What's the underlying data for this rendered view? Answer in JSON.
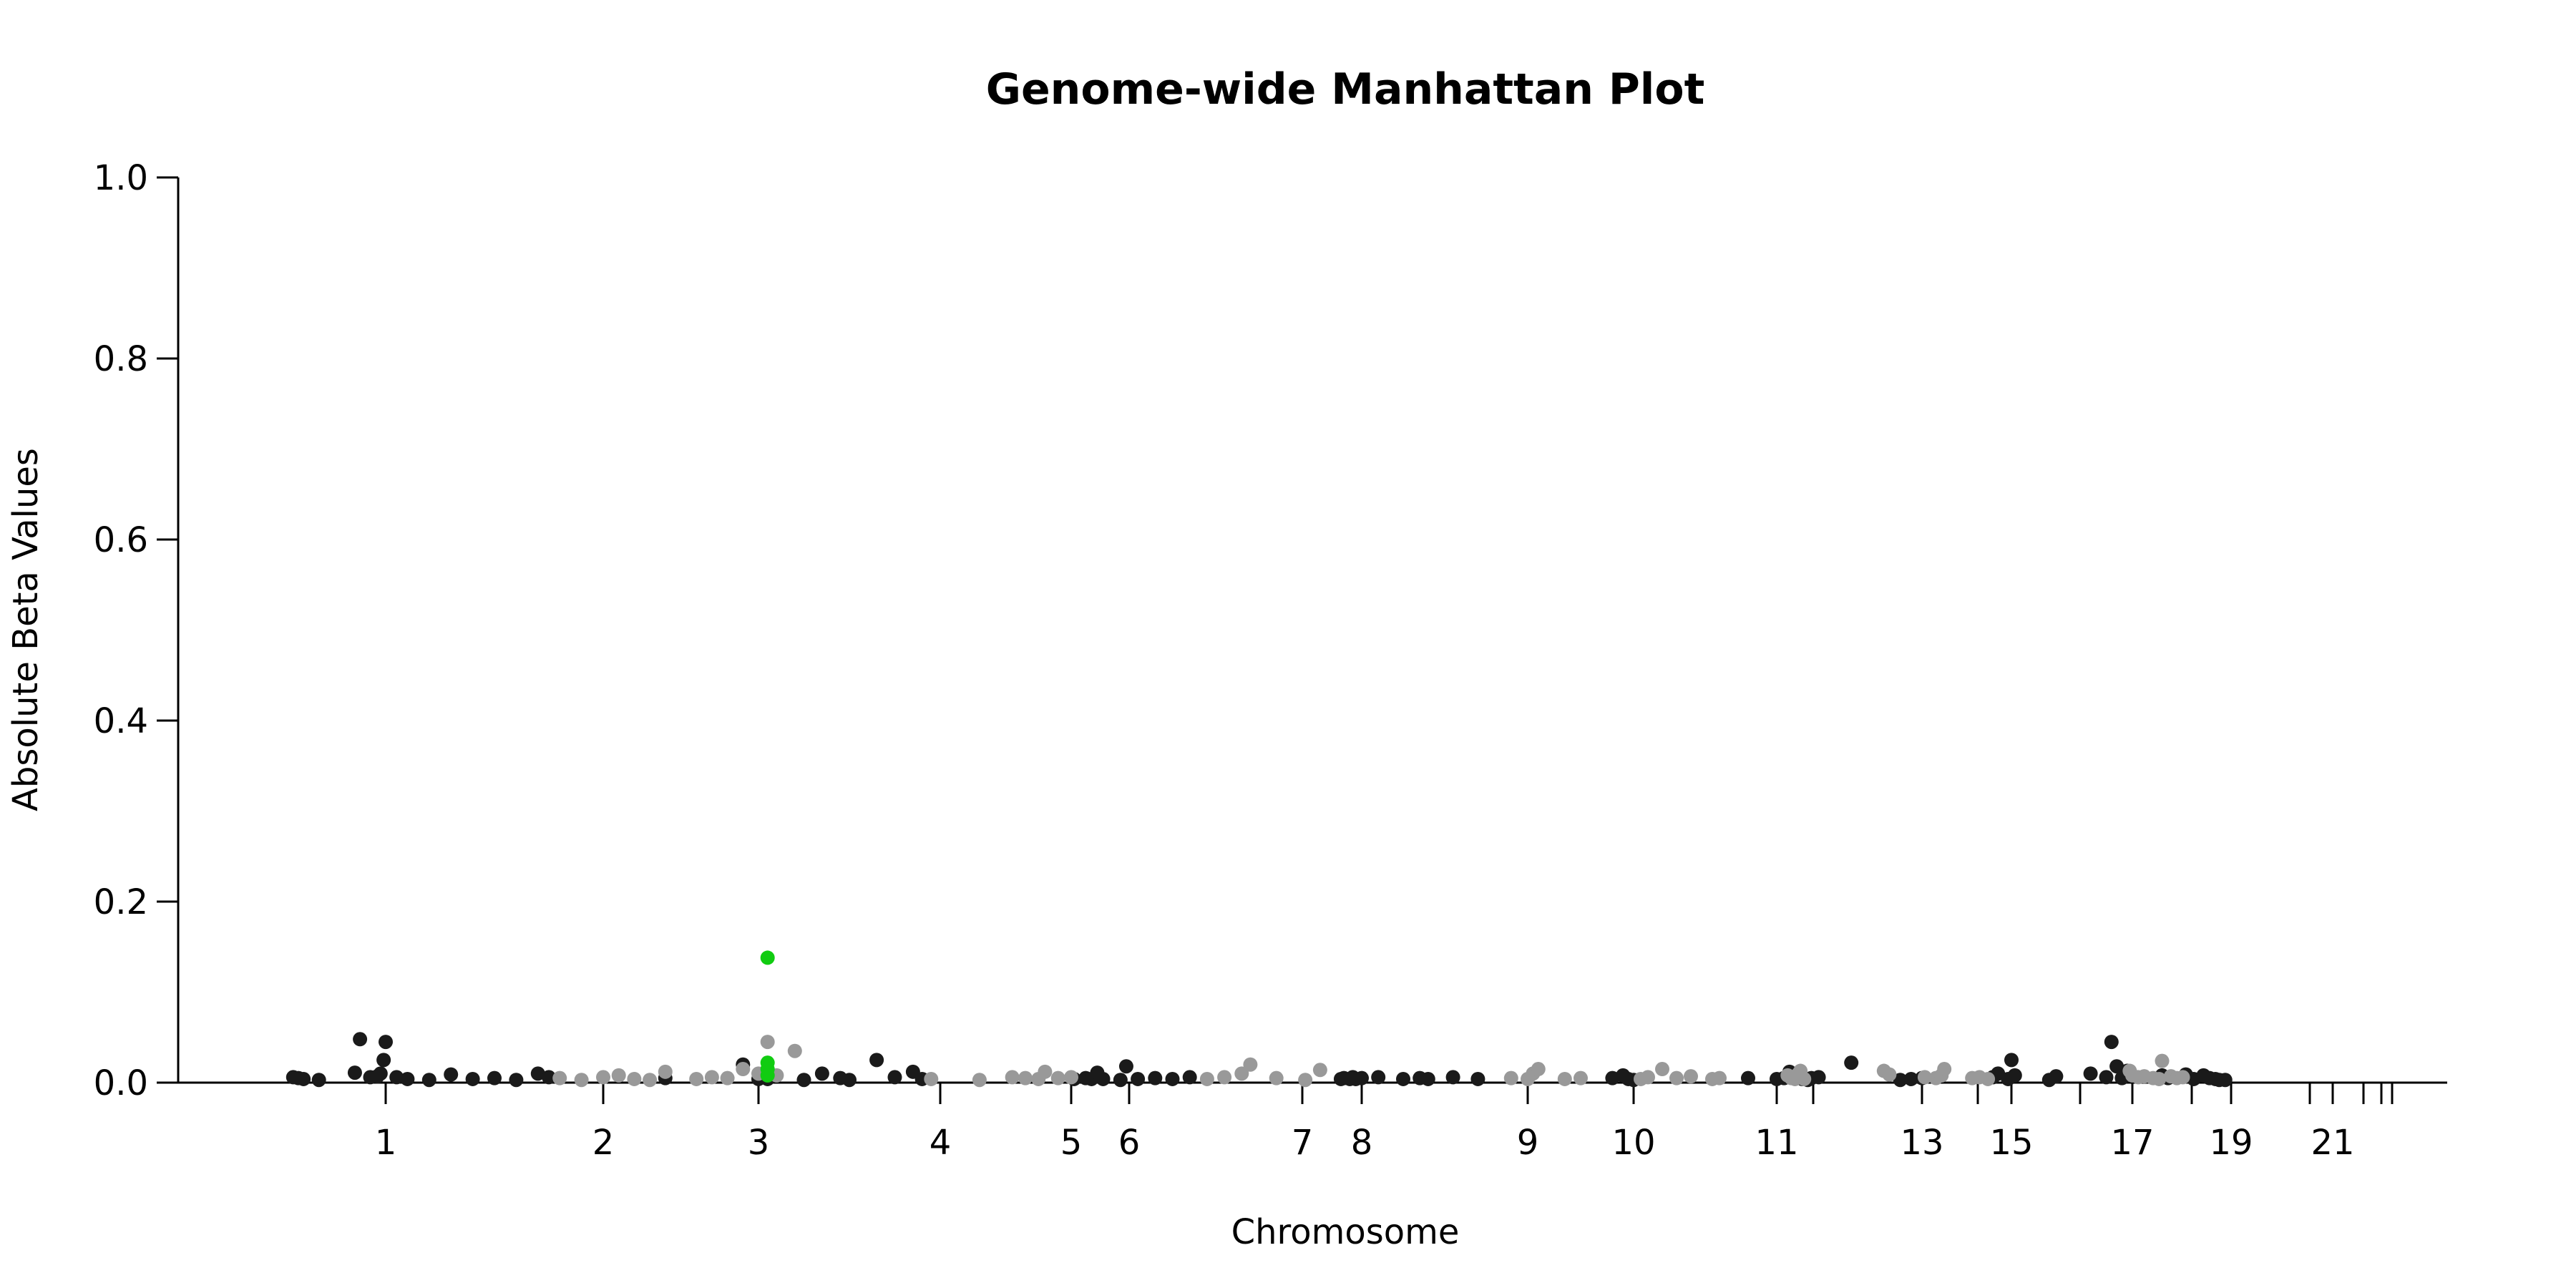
{
  "chart_data": {
    "type": "scatter",
    "title": "Genome-wide Manhattan Plot",
    "xlabel": "Chromosome",
    "ylabel": "Absolute Beta Values",
    "ylim": [
      0,
      1.0
    ],
    "y_ticks": [
      "0.0",
      "0.2",
      "0.4",
      "0.6",
      "0.8",
      "1.0"
    ],
    "x_ticks": [
      {
        "label": "1",
        "pos": 1.0
      },
      {
        "label": "2",
        "pos": 2.0
      },
      {
        "label": "3",
        "pos": 3.0
      },
      {
        "label": "4",
        "pos": 4.0
      },
      {
        "label": "5",
        "pos": 5.0
      },
      {
        "label": "6",
        "pos": 6.0
      },
      {
        "label": "7",
        "pos": 7.0
      },
      {
        "label": "8",
        "pos": 8.0
      },
      {
        "label": "9",
        "pos": 9.0
      },
      {
        "label": "10",
        "pos": 10.0
      },
      {
        "label": "11",
        "pos": 11.0
      },
      {
        "label": "",
        "pos": 12.0
      },
      {
        "label": "13",
        "pos": 13.0
      },
      {
        "label": "",
        "pos": 14.0
      },
      {
        "label": "15",
        "pos": 15.0
      },
      {
        "label": "",
        "pos": 16.0
      },
      {
        "label": "17",
        "pos": 17.0
      },
      {
        "label": "",
        "pos": 18.0
      },
      {
        "label": "19",
        "pos": 19.0
      },
      {
        "label": "",
        "pos": 20.0
      },
      {
        "label": "21",
        "pos": 21.0
      },
      {
        "label": "",
        "pos": 22.0
      },
      {
        "label": "",
        "pos": 23.0
      },
      {
        "label": "",
        "pos": 24.0
      }
    ],
    "colors": {
      "dark": "#1a1a1a",
      "light": "#999999",
      "highlight": "#11cc11"
    },
    "series": [
      {
        "color": "dark",
        "points": [
          [
            0.1,
            0.006
          ],
          [
            0.15,
            0.005
          ],
          [
            0.2,
            0.004
          ],
          [
            0.35,
            0.003
          ],
          [
            0.7,
            0.011
          ],
          [
            0.75,
            0.048
          ],
          [
            0.85,
            0.006
          ],
          [
            0.92,
            0.007
          ],
          [
            0.95,
            0.01
          ],
          [
            0.98,
            0.025
          ],
          [
            1.0,
            0.045
          ],
          [
            1.05,
            0.006
          ],
          [
            1.1,
            0.004
          ],
          [
            1.2,
            0.003
          ],
          [
            1.3,
            0.009
          ],
          [
            1.4,
            0.004
          ],
          [
            1.5,
            0.005
          ],
          [
            1.6,
            0.003
          ],
          [
            1.7,
            0.01
          ],
          [
            1.75,
            0.006
          ],
          [
            2.4,
            0.005
          ],
          [
            2.9,
            0.02
          ],
          [
            3.0,
            0.004
          ],
          [
            3.05,
            0.004
          ],
          [
            3.25,
            0.003
          ],
          [
            3.35,
            0.01
          ],
          [
            3.45,
            0.005
          ],
          [
            3.5,
            0.003
          ],
          [
            3.65,
            0.025
          ],
          [
            3.75,
            0.006
          ],
          [
            3.85,
            0.012
          ],
          [
            3.9,
            0.004
          ],
          [
            5.05,
            0.004
          ],
          [
            5.25,
            0.005
          ],
          [
            5.35,
            0.004
          ],
          [
            5.45,
            0.011
          ],
          [
            5.55,
            0.004
          ],
          [
            5.85,
            0.003
          ],
          [
            5.95,
            0.018
          ],
          [
            6.05,
            0.004
          ],
          [
            6.15,
            0.005
          ],
          [
            6.25,
            0.004
          ],
          [
            6.35,
            0.006
          ],
          [
            7.65,
            0.004
          ],
          [
            7.7,
            0.005
          ],
          [
            7.8,
            0.004
          ],
          [
            7.85,
            0.006
          ],
          [
            7.9,
            0.004
          ],
          [
            8.0,
            0.005
          ],
          [
            8.1,
            0.006
          ],
          [
            8.25,
            0.004
          ],
          [
            8.35,
            0.005
          ],
          [
            8.4,
            0.004
          ],
          [
            8.55,
            0.006
          ],
          [
            8.7,
            0.004
          ],
          [
            9.8,
            0.005
          ],
          [
            9.9,
            0.008
          ],
          [
            9.95,
            0.004
          ],
          [
            10.0,
            0.003
          ],
          [
            10.8,
            0.005
          ],
          [
            11.0,
            0.004
          ],
          [
            11.2,
            0.005
          ],
          [
            11.35,
            0.012
          ],
          [
            11.7,
            0.004
          ],
          [
            11.85,
            0.003
          ],
          [
            11.95,
            0.005
          ],
          [
            12.05,
            0.006
          ],
          [
            12.35,
            0.022
          ],
          [
            12.8,
            0.003
          ],
          [
            12.9,
            0.004
          ],
          [
            13.0,
            0.005
          ],
          [
            14.45,
            0.006
          ],
          [
            14.6,
            0.01
          ],
          [
            14.9,
            0.004
          ],
          [
            15.0,
            0.025
          ],
          [
            15.05,
            0.008
          ],
          [
            15.55,
            0.003
          ],
          [
            15.65,
            0.007
          ],
          [
            16.2,
            0.01
          ],
          [
            16.5,
            0.006
          ],
          [
            16.6,
            0.045
          ],
          [
            16.7,
            0.018
          ],
          [
            16.8,
            0.005
          ],
          [
            16.9,
            0.013
          ],
          [
            17.5,
            0.008
          ],
          [
            17.6,
            0.005
          ],
          [
            17.9,
            0.009
          ],
          [
            18.05,
            0.004
          ],
          [
            18.3,
            0.008
          ],
          [
            18.45,
            0.005
          ],
          [
            18.6,
            0.004
          ],
          [
            18.7,
            0.003
          ],
          [
            18.85,
            0.003
          ]
        ]
      },
      {
        "color": "light",
        "points": [
          [
            1.8,
            0.005
          ],
          [
            1.9,
            0.003
          ],
          [
            2.0,
            0.006
          ],
          [
            2.1,
            0.008
          ],
          [
            2.2,
            0.004
          ],
          [
            2.3,
            0.003
          ],
          [
            2.4,
            0.012
          ],
          [
            2.6,
            0.004
          ],
          [
            2.7,
            0.006
          ],
          [
            2.8,
            0.005
          ],
          [
            2.9,
            0.015
          ],
          [
            3.0,
            0.01
          ],
          [
            3.05,
            0.045
          ],
          [
            3.1,
            0.008
          ],
          [
            3.2,
            0.035
          ],
          [
            3.95,
            0.004
          ],
          [
            4.3,
            0.003
          ],
          [
            4.55,
            0.006
          ],
          [
            4.65,
            0.005
          ],
          [
            4.75,
            0.004
          ],
          [
            4.8,
            0.012
          ],
          [
            4.9,
            0.005
          ],
          [
            5.0,
            0.006
          ],
          [
            6.45,
            0.004
          ],
          [
            6.55,
            0.006
          ],
          [
            6.65,
            0.01
          ],
          [
            6.7,
            0.02
          ],
          [
            6.85,
            0.005
          ],
          [
            7.05,
            0.003
          ],
          [
            7.3,
            0.014
          ],
          [
            8.9,
            0.005
          ],
          [
            9.0,
            0.004
          ],
          [
            9.05,
            0.01
          ],
          [
            9.1,
            0.015
          ],
          [
            9.35,
            0.004
          ],
          [
            9.5,
            0.005
          ],
          [
            10.05,
            0.004
          ],
          [
            10.1,
            0.006
          ],
          [
            10.2,
            0.015
          ],
          [
            10.3,
            0.005
          ],
          [
            10.4,
            0.007
          ],
          [
            10.55,
            0.004
          ],
          [
            10.6,
            0.005
          ],
          [
            11.3,
            0.008
          ],
          [
            11.4,
            0.005
          ],
          [
            11.5,
            0.004
          ],
          [
            11.6,
            0.01
          ],
          [
            11.65,
            0.013
          ],
          [
            11.75,
            0.004
          ],
          [
            12.65,
            0.013
          ],
          [
            12.7,
            0.009
          ],
          [
            13.05,
            0.006
          ],
          [
            13.25,
            0.005
          ],
          [
            13.35,
            0.008
          ],
          [
            13.4,
            0.015
          ],
          [
            13.9,
            0.005
          ],
          [
            14.05,
            0.006
          ],
          [
            14.3,
            0.004
          ],
          [
            16.95,
            0.013
          ],
          [
            17.0,
            0.008
          ],
          [
            17.1,
            0.006
          ],
          [
            17.2,
            0.007
          ],
          [
            17.35,
            0.005
          ],
          [
            17.45,
            0.004
          ],
          [
            17.5,
            0.024
          ],
          [
            17.65,
            0.007
          ],
          [
            17.75,
            0.005
          ],
          [
            17.85,
            0.006
          ]
        ]
      },
      {
        "color": "highlight",
        "points": [
          [
            3.05,
            0.138
          ],
          [
            3.05,
            0.022
          ],
          [
            3.05,
            0.015
          ],
          [
            3.05,
            0.008
          ]
        ]
      }
    ]
  }
}
